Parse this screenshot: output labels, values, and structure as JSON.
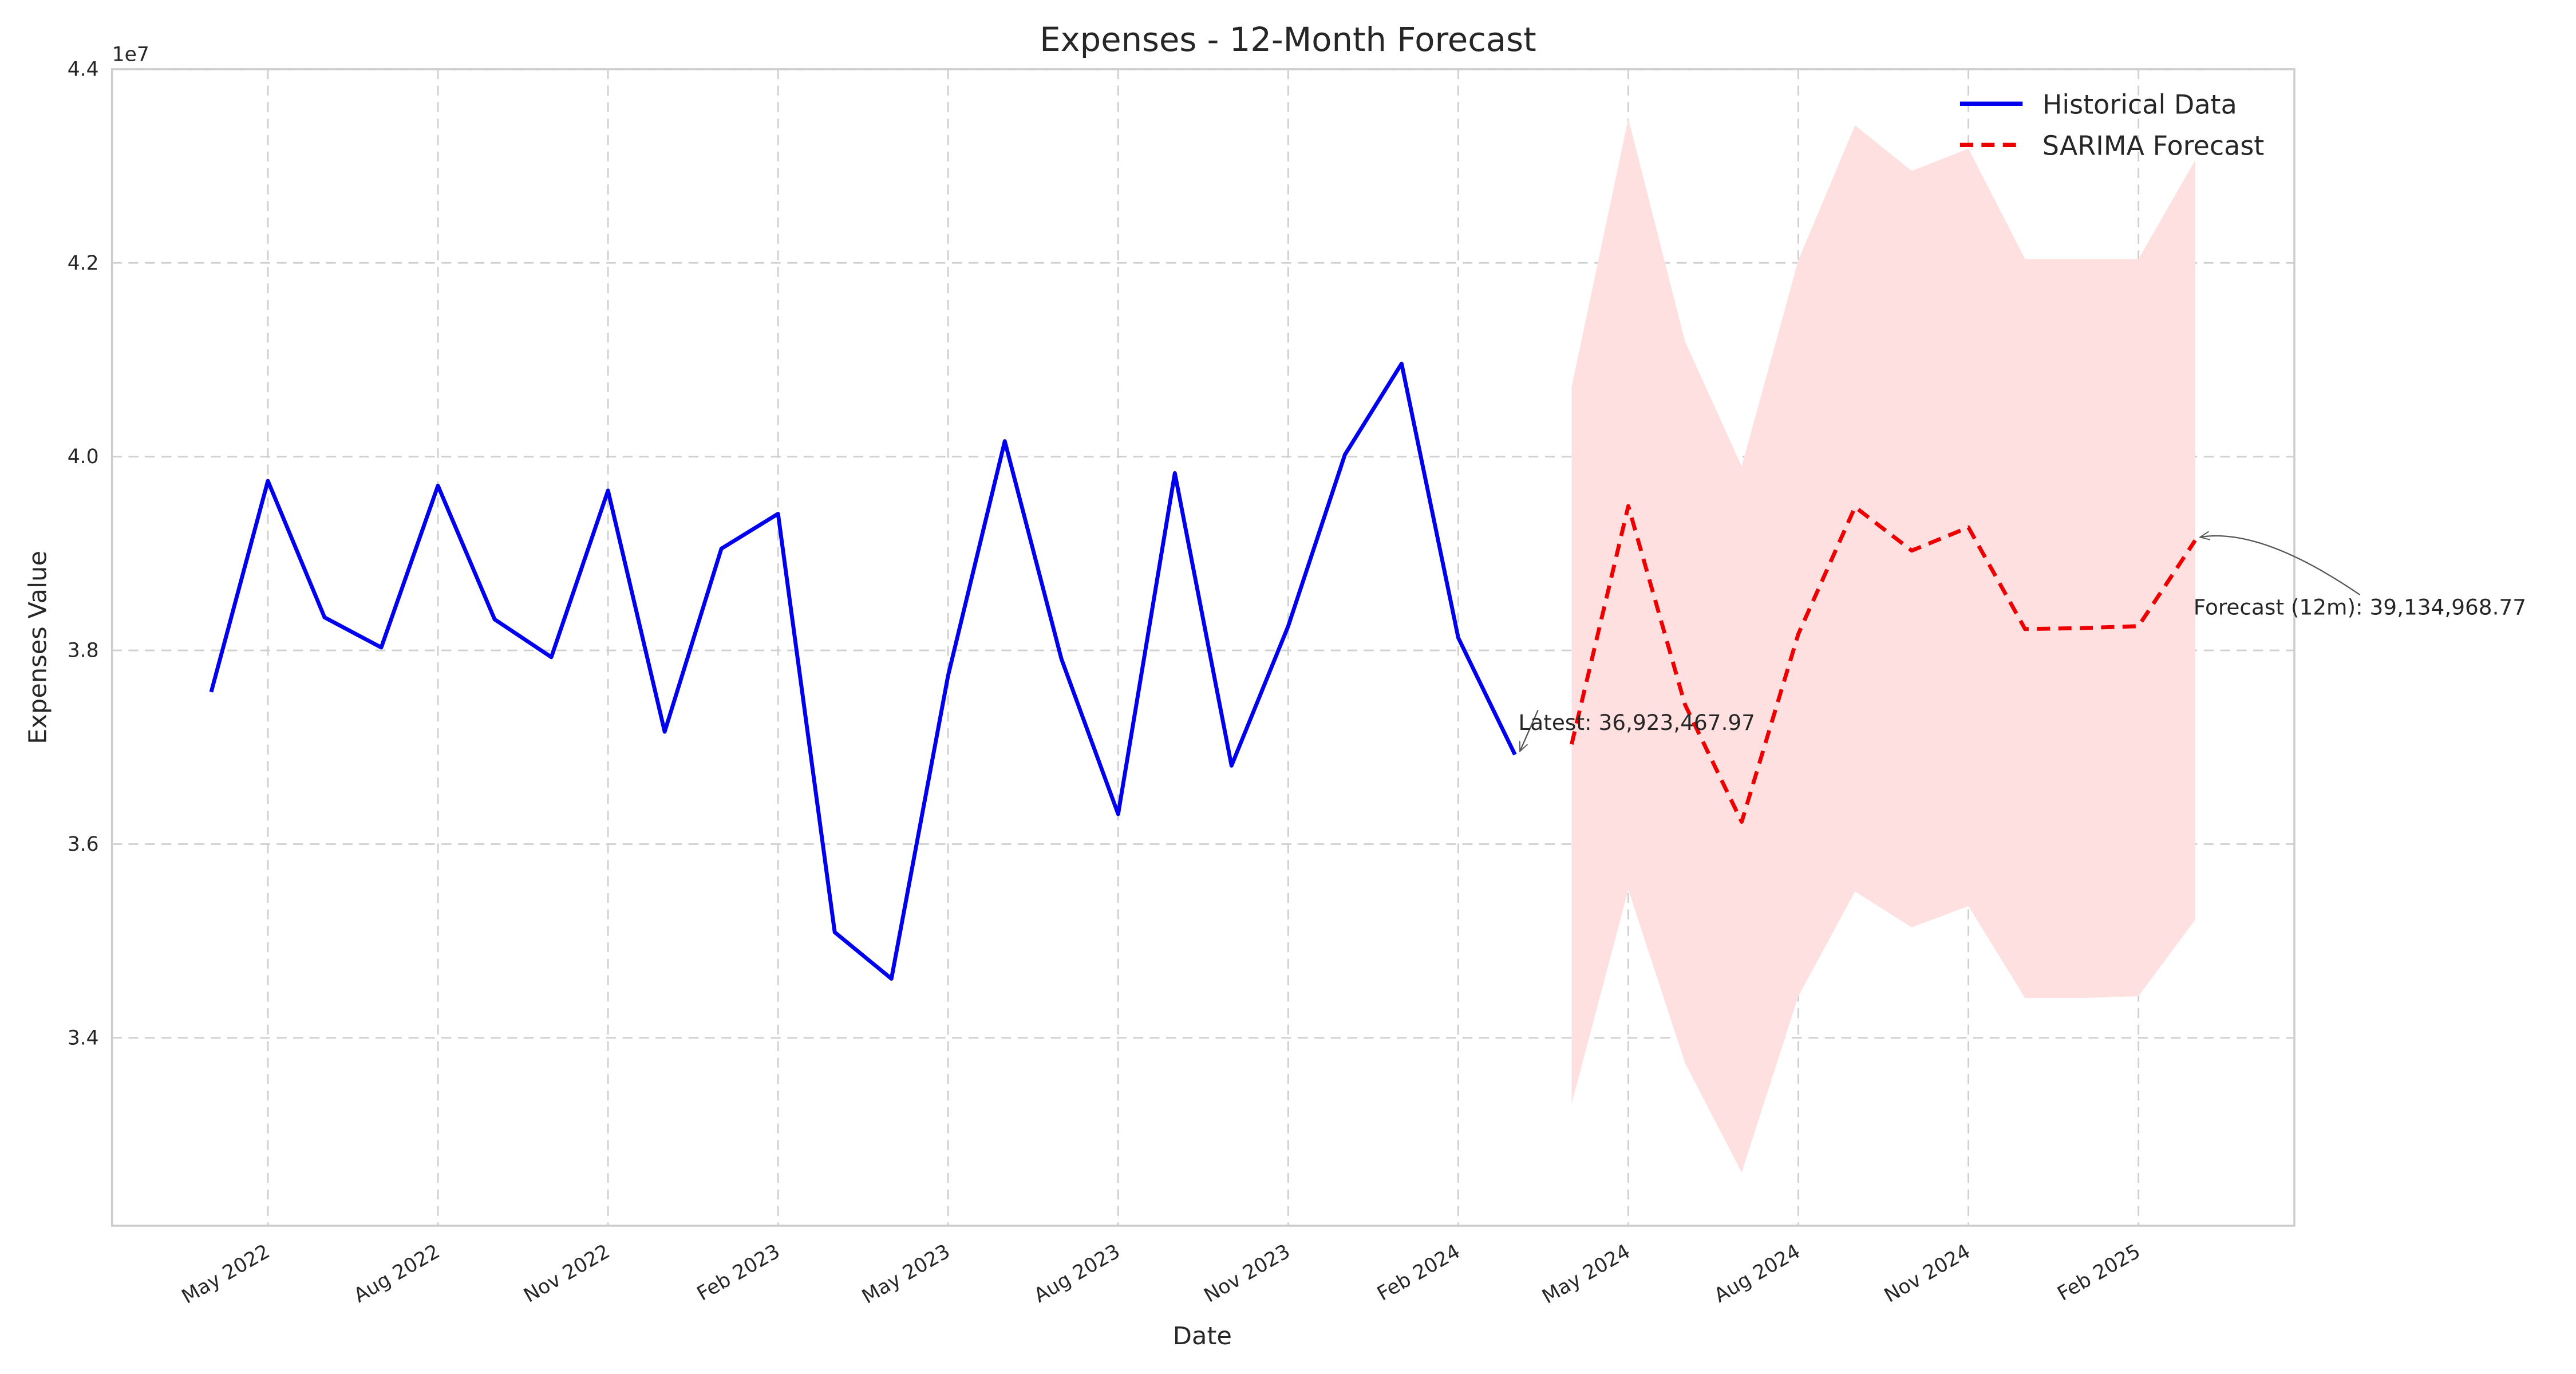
{
  "chart_data": {
    "type": "line",
    "title": "Expenses - 12-Month Forecast",
    "x_label": "Date",
    "y_label": "Expenses Value",
    "y_offset_label": "1e7",
    "grid": true,
    "legend_position": "upper right",
    "ylim": [
      32060000,
      44000000
    ],
    "yticks": [
      {
        "value": 34000000,
        "label": "3.4"
      },
      {
        "value": 36000000,
        "label": "3.6"
      },
      {
        "value": 38000000,
        "label": "3.8"
      },
      {
        "value": 40000000,
        "label": "4.0"
      },
      {
        "value": 42000000,
        "label": "4.2"
      },
      {
        "value": 44000000,
        "label": "4.4"
      }
    ],
    "xticks": [
      {
        "value": "2022-05",
        "label": "May 2022"
      },
      {
        "value": "2022-08",
        "label": "Aug 2022"
      },
      {
        "value": "2022-11",
        "label": "Nov 2022"
      },
      {
        "value": "2023-02",
        "label": "Feb 2023"
      },
      {
        "value": "2023-05",
        "label": "May 2023"
      },
      {
        "value": "2023-08",
        "label": "Aug 2023"
      },
      {
        "value": "2023-11",
        "label": "Nov 2023"
      },
      {
        "value": "2024-02",
        "label": "Feb 2024"
      },
      {
        "value": "2024-05",
        "label": "May 2024"
      },
      {
        "value": "2024-08",
        "label": "Aug 2024"
      },
      {
        "value": "2024-11",
        "label": "Nov 2024"
      },
      {
        "value": "2025-02",
        "label": "Feb 2025"
      }
    ],
    "series": [
      {
        "name": "Historical Data",
        "color": "#0000ee",
        "dashed": false,
        "x": [
          "2022-04",
          "2022-05",
          "2022-06",
          "2022-07",
          "2022-08",
          "2022-09",
          "2022-10",
          "2022-11",
          "2022-12",
          "2023-01",
          "2023-02",
          "2023-03",
          "2023-04",
          "2023-05",
          "2023-06",
          "2023-07",
          "2023-08",
          "2023-09",
          "2023-10",
          "2023-11",
          "2023-12",
          "2024-01",
          "2024-02",
          "2024-03"
        ],
        "values": [
          37570000,
          39750000,
          38340000,
          38030000,
          39700000,
          38320000,
          37930000,
          39650000,
          37160000,
          39050000,
          39410000,
          35090000,
          34610000,
          37740000,
          40160000,
          37910000,
          36310000,
          39830000,
          36810000,
          38250000,
          40020000,
          40960000,
          38130000,
          36923467.97
        ]
      },
      {
        "name": "SARIMA Forecast",
        "color": "#ee0000",
        "dashed": true,
        "x": [
          "2024-04",
          "2024-05",
          "2024-06",
          "2024-07",
          "2024-08",
          "2024-09",
          "2024-10",
          "2024-11",
          "2024-12",
          "2025-01",
          "2025-02",
          "2025-03"
        ],
        "values": [
          37030000,
          39490000,
          37440000,
          36230000,
          38170000,
          39480000,
          39030000,
          39270000,
          38220000,
          38230000,
          38250000,
          39134968.77
        ]
      }
    ],
    "band": {
      "color": "#ffe0e0",
      "upper": [
        40720000,
        43490000,
        41190000,
        39900000,
        42030000,
        43420000,
        42950000,
        43180000,
        42040000,
        42040000,
        42040000,
        43060000
      ],
      "lower": [
        33320000,
        35530000,
        33740000,
        32610000,
        34430000,
        35510000,
        35140000,
        35360000,
        34410000,
        34410000,
        34430000,
        35220000
      ]
    },
    "annotations": [
      "Latest: 36,923,467.97",
      "Forecast (12m): 39,134,968.77"
    ]
  }
}
